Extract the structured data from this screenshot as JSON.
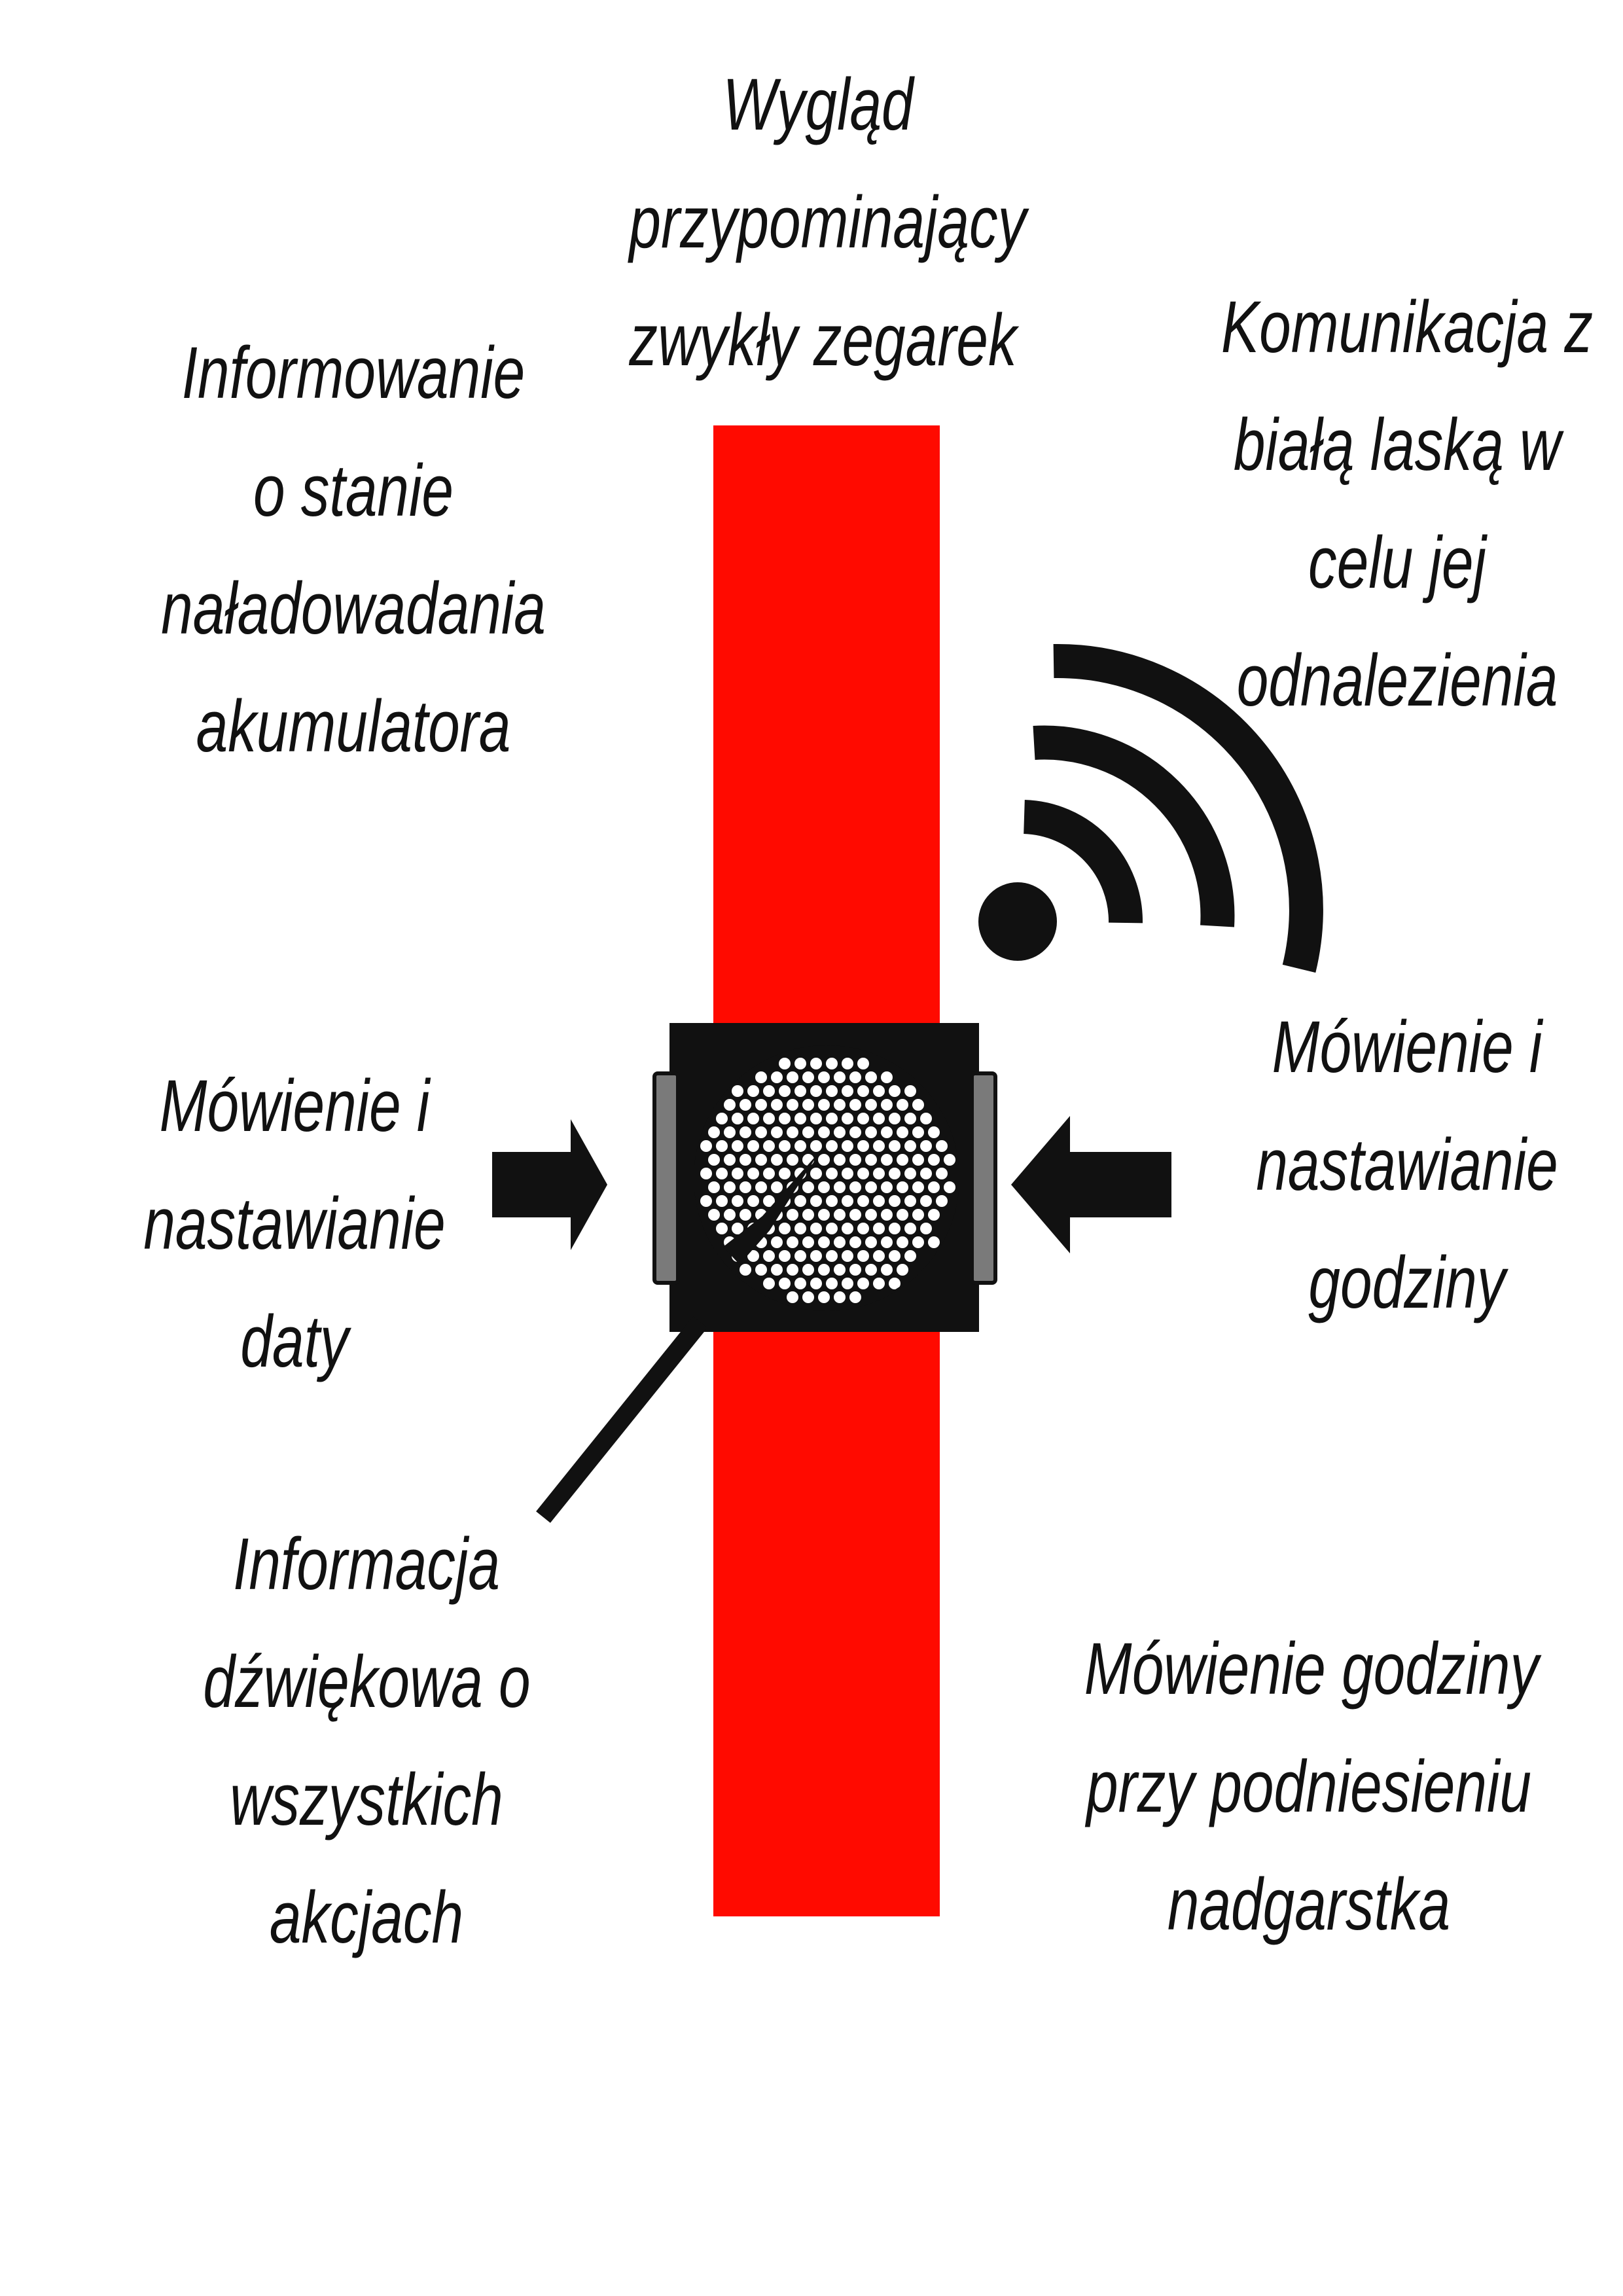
{
  "labels": {
    "appearance": [
      "Wygląd",
      "przypominający",
      "zwykły zegarek"
    ],
    "battery": [
      "Informowanie",
      "o stanie",
      "naładowadania",
      "akumulatora"
    ],
    "cane": [
      "Komunikacja z",
      "białą laską w",
      "celu jej",
      "odnalezienia"
    ],
    "date": [
      "Mówienie i",
      "nastawianie",
      "daty"
    ],
    "time": [
      "Mówienie i",
      "nastawianie",
      "godziny"
    ],
    "sound": [
      "Informacja",
      "dźwiękowa o",
      "wszystkich",
      "akcjach"
    ],
    "wrist": [
      "Mówienie godziny",
      "przy podniesieniu",
      "nadgarstka"
    ]
  },
  "colors": {
    "strap": "#ff0a00",
    "watch_body": "#111111",
    "side_buttons": "#7a7a7a",
    "speaker_holes": "#ffffff",
    "ink": "#111111"
  },
  "icons": {
    "signal": "wireless-signal-icon",
    "speaker": "speaker-grille-icon",
    "hand": "watch-hand-icon"
  }
}
